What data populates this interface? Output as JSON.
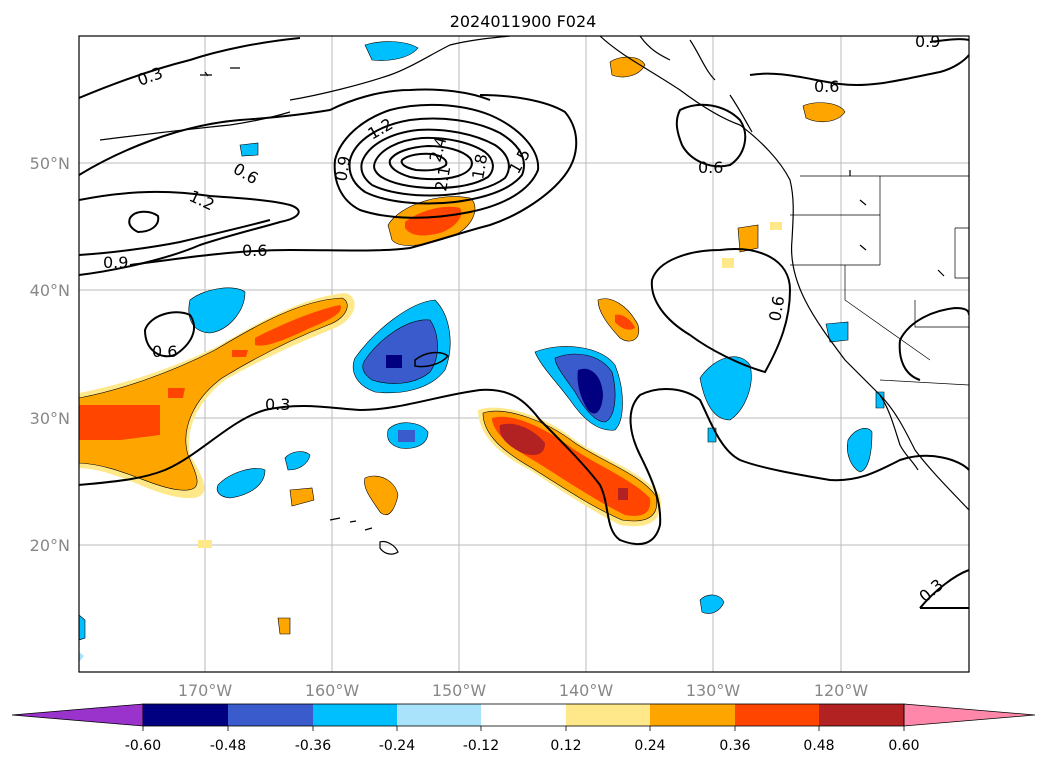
{
  "title": "2024011900 F024",
  "lat_labels": [
    "50°N",
    "40°N",
    "30°N",
    "20°N"
  ],
  "lon_labels": [
    "170°W",
    "160°W",
    "150°W",
    "140°W",
    "130°W",
    "120°W"
  ],
  "contour_labels": [
    "0.3",
    "0.6",
    "0.9",
    "1.2",
    "1.5",
    "1.8",
    "2.1",
    "2.4"
  ],
  "colorbar": {
    "colors": [
      "#9933cc",
      "#000080",
      "#3a5bcc",
      "#00bfff",
      "#a9e2fb",
      "#ffffff",
      "#ffe88a",
      "#ffa500",
      "#ff4500",
      "#b22222",
      "#ff88aa"
    ],
    "tick_labels": [
      "-0.60",
      "-0.48",
      "-0.36",
      "-0.24",
      "-0.12",
      "0.12",
      "0.24",
      "0.36",
      "0.48",
      "0.60"
    ]
  }
}
